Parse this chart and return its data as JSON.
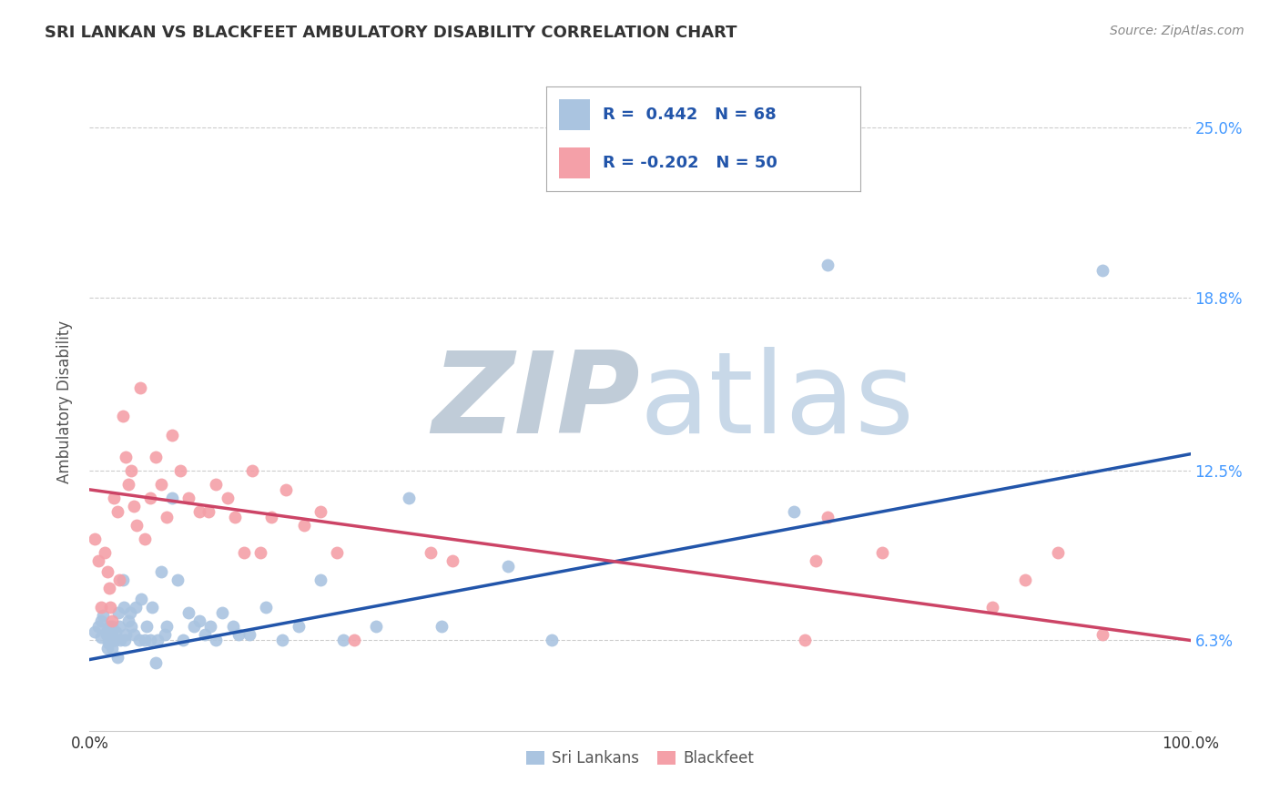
{
  "title": "SRI LANKAN VS BLACKFEET AMBULATORY DISABILITY CORRELATION CHART",
  "source": "Source: ZipAtlas.com",
  "ylabel": "Ambulatory Disability",
  "ytick_labels": [
    "6.3%",
    "12.5%",
    "18.8%",
    "25.0%"
  ],
  "ytick_values": [
    0.063,
    0.125,
    0.188,
    0.25
  ],
  "legend_label_sri": "Sri Lankans",
  "legend_label_blk": "Blackfeet",
  "legend_r_sri": "R =  0.442",
  "legend_n_sri": "N = 68",
  "legend_r_blk": "R = -0.202",
  "legend_n_blk": "N = 50",
  "sri_color": "#aac4e0",
  "blk_color": "#f4a0a8",
  "sri_line_color": "#2255aa",
  "blk_line_color": "#cc4466",
  "background_color": "#ffffff",
  "watermark_zip_color": "#c8d8e8",
  "watermark_atlas_color": "#c8d8e8",
  "grid_color": "#cccccc",
  "title_color": "#333333",
  "axis_label_color": "#555555",
  "ytick_color": "#4499ff",
  "legend_text_color": "#2255aa",
  "sri_intercept": 0.056,
  "sri_slope": 0.075,
  "blk_intercept": 0.118,
  "blk_slope": -0.055,
  "sri_points_x": [
    0.005,
    0.008,
    0.01,
    0.01,
    0.012,
    0.015,
    0.015,
    0.016,
    0.017,
    0.018,
    0.018,
    0.019,
    0.02,
    0.02,
    0.02,
    0.022,
    0.023,
    0.024,
    0.025,
    0.026,
    0.027,
    0.028,
    0.03,
    0.031,
    0.032,
    0.033,
    0.035,
    0.037,
    0.038,
    0.04,
    0.042,
    0.045,
    0.047,
    0.05,
    0.052,
    0.055,
    0.057,
    0.06,
    0.062,
    0.065,
    0.068,
    0.07,
    0.075,
    0.08,
    0.085,
    0.09,
    0.095,
    0.1,
    0.105,
    0.11,
    0.115,
    0.12,
    0.13,
    0.135,
    0.145,
    0.16,
    0.175,
    0.19,
    0.21,
    0.23,
    0.26,
    0.29,
    0.32,
    0.38,
    0.42,
    0.64,
    0.67,
    0.92
  ],
  "sri_points_y": [
    0.066,
    0.068,
    0.07,
    0.064,
    0.072,
    0.066,
    0.065,
    0.06,
    0.062,
    0.068,
    0.063,
    0.064,
    0.065,
    0.06,
    0.068,
    0.063,
    0.063,
    0.066,
    0.057,
    0.073,
    0.068,
    0.063,
    0.085,
    0.075,
    0.063,
    0.065,
    0.07,
    0.073,
    0.068,
    0.065,
    0.075,
    0.063,
    0.078,
    0.063,
    0.068,
    0.063,
    0.075,
    0.055,
    0.063,
    0.088,
    0.065,
    0.068,
    0.115,
    0.085,
    0.063,
    0.073,
    0.068,
    0.07,
    0.065,
    0.068,
    0.063,
    0.073,
    0.068,
    0.065,
    0.065,
    0.075,
    0.063,
    0.068,
    0.085,
    0.063,
    0.068,
    0.115,
    0.068,
    0.09,
    0.063,
    0.11,
    0.2,
    0.198
  ],
  "blk_points_x": [
    0.005,
    0.008,
    0.01,
    0.014,
    0.016,
    0.018,
    0.019,
    0.02,
    0.022,
    0.025,
    0.027,
    0.03,
    0.033,
    0.035,
    0.038,
    0.04,
    0.043,
    0.046,
    0.05,
    0.055,
    0.06,
    0.065,
    0.07,
    0.075,
    0.082,
    0.09,
    0.1,
    0.108,
    0.115,
    0.125,
    0.132,
    0.14,
    0.148,
    0.155,
    0.165,
    0.178,
    0.195,
    0.21,
    0.225,
    0.24,
    0.31,
    0.33,
    0.65,
    0.66,
    0.67,
    0.72,
    0.82,
    0.85,
    0.88,
    0.92
  ],
  "blk_points_y": [
    0.1,
    0.092,
    0.075,
    0.095,
    0.088,
    0.082,
    0.075,
    0.07,
    0.115,
    0.11,
    0.085,
    0.145,
    0.13,
    0.12,
    0.125,
    0.112,
    0.105,
    0.155,
    0.1,
    0.115,
    0.13,
    0.12,
    0.108,
    0.138,
    0.125,
    0.115,
    0.11,
    0.11,
    0.12,
    0.115,
    0.108,
    0.095,
    0.125,
    0.095,
    0.108,
    0.118,
    0.105,
    0.11,
    0.095,
    0.063,
    0.095,
    0.092,
    0.063,
    0.092,
    0.108,
    0.095,
    0.075,
    0.085,
    0.095,
    0.065
  ]
}
